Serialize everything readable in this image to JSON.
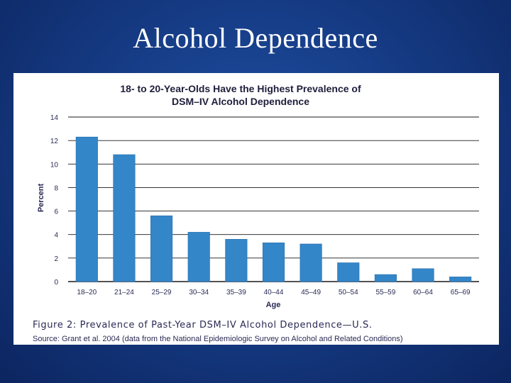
{
  "slide": {
    "title": "Alcohol Dependence"
  },
  "caption": "Figure 2: Prevalence of Past-Year DSM–IV Alcohol Dependence—U.S.",
  "source": "Source: Grant et al. 2004 (data from the National Epidemiologic Survey on Alcohol and Related Conditions)",
  "colors": {
    "bar": "#3386c8",
    "grid": "#1a1a1a",
    "axis_text": "#2a2a55",
    "title_text": "#1e1e3c"
  },
  "chart_data": {
    "type": "bar",
    "title": "18- to 20-Year-Olds Have the Highest Prevalence of",
    "title_line2": "DSM–IV Alcohol Dependence",
    "xlabel": "Age",
    "ylabel": "Percent",
    "categories": [
      "18–20",
      "21–24",
      "25–29",
      "30–34",
      "35–39",
      "40–44",
      "45–49",
      "50–54",
      "55–59",
      "60–64",
      "65–69"
    ],
    "values": [
      12.3,
      10.8,
      5.6,
      4.2,
      3.6,
      3.3,
      3.2,
      1.6,
      0.6,
      1.1,
      0.4
    ],
    "ylim": [
      0,
      14
    ],
    "yticks": [
      0,
      2,
      4,
      6,
      8,
      10,
      12,
      14
    ],
    "grid": true
  }
}
